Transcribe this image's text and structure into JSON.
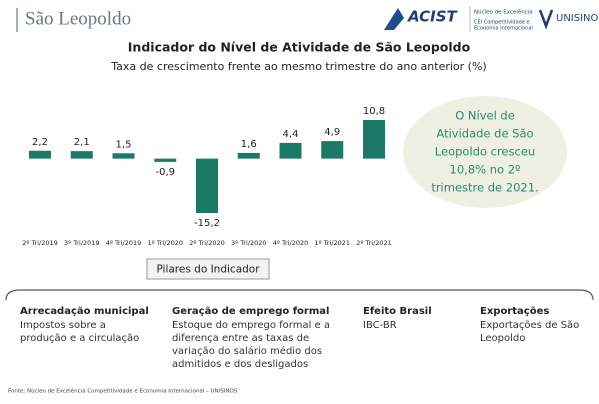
{
  "header": {
    "title": "São Leopoldo",
    "logo_acist": "ACIST",
    "logo_nucleo": "Núcleo de Excelência",
    "logo_cei": [
      "CEI Competitividade e",
      "Economia Internacional"
    ],
    "logo_unisinos": "UNISINOS"
  },
  "chart_data": {
    "type": "bar",
    "title": "Indicador do Nível de Atividade de São Leopoldo",
    "subtitle": "Taxa de crescimento frente ao mesmo trimestre do ano anterior (%)",
    "categories": [
      "2º Tri/2019",
      "3º Tri/2019",
      "4º Tri/2019",
      "1º Tri/2020",
      "2º Tri/2020",
      "3º Tri/2020",
      "4º Tri/2020",
      "1º Tri/2021",
      "2º Tri/2021"
    ],
    "values": [
      2.2,
      2.1,
      1.5,
      -0.9,
      -15.2,
      1.6,
      4.4,
      4.9,
      10.8
    ],
    "value_labels": [
      "2,2",
      "2,1",
      "1,5",
      "-0,9",
      "-15,2",
      "1,6",
      "4,4",
      "4,9",
      "10,8"
    ],
    "color": "#1b7a66"
  },
  "callout": {
    "lines": [
      "O Nível de",
      "Atividade de São",
      "Leopoldo cresceu",
      "10,8% no 2º",
      "trimestre de 2021."
    ]
  },
  "pillars": {
    "title": "Pilares do Indicador",
    "items": [
      {
        "heading": "Arrecadação municipal",
        "lines": [
          "Impostos sobre a",
          "produção e a circulação"
        ]
      },
      {
        "heading": "Geração de emprego formal",
        "lines": [
          "Estoque do emprego formal e a",
          "diferença entre as taxas de",
          "variação do salário médio dos",
          "admitidos e dos desligados"
        ]
      },
      {
        "heading": "Efeito Brasil",
        "lines": [
          "IBC-BR"
        ]
      },
      {
        "heading": "Exportações",
        "lines": [
          "Exportações de São",
          "Leopoldo"
        ]
      }
    ]
  },
  "footnote": "Fonte: Núcleo de Excelência Competitividade e Economia Internacional – UNISINOS"
}
